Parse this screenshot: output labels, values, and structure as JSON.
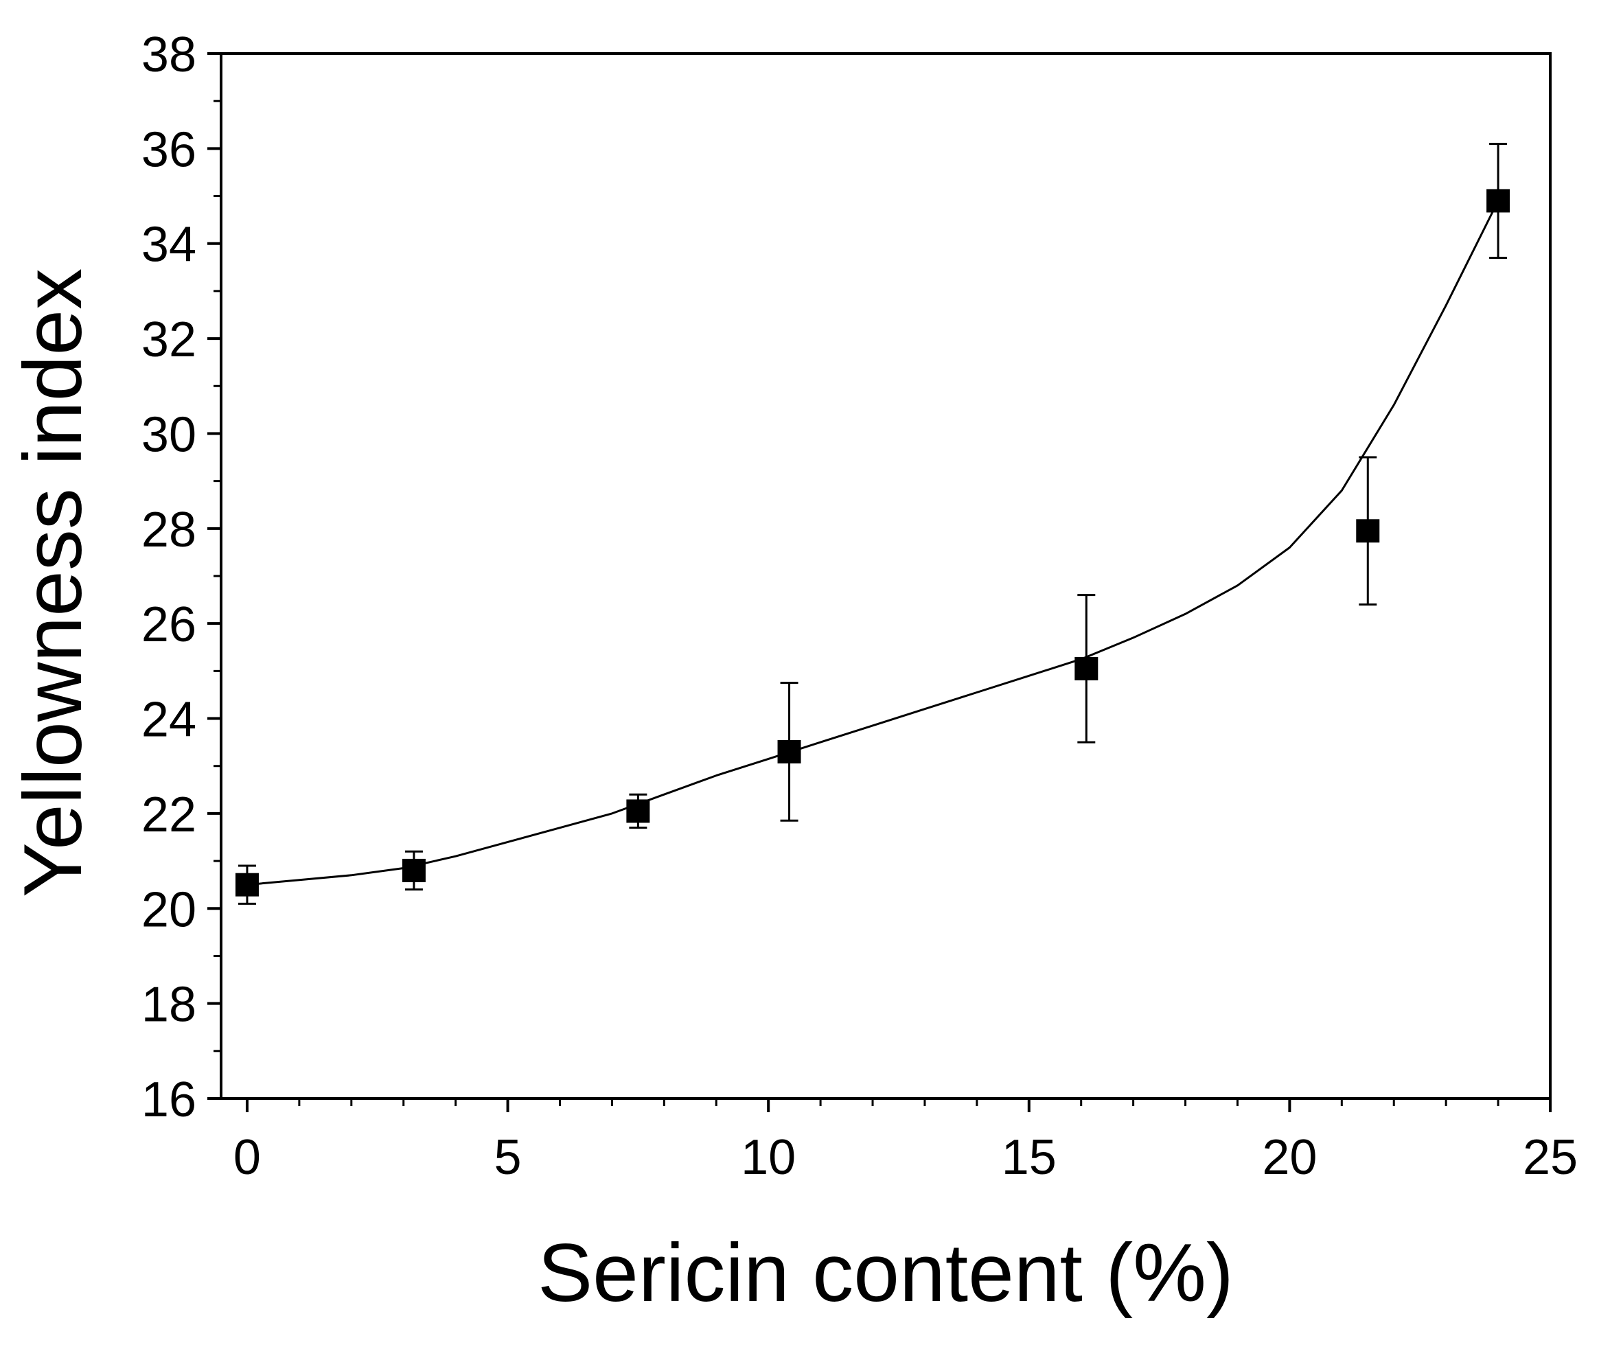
{
  "chart_data": {
    "type": "scatter",
    "xlabel": "Sericin content (%)",
    "ylabel": "Yellowness index",
    "xlim": [
      -0.5,
      25
    ],
    "ylim": [
      16,
      38
    ],
    "xticks": [
      0,
      5,
      10,
      15,
      20,
      25
    ],
    "yticks": [
      16,
      18,
      20,
      22,
      24,
      26,
      28,
      30,
      32,
      34,
      36,
      38
    ],
    "x_minor_step": 1,
    "y_minor_step": 1,
    "grid": false,
    "legend": "none",
    "colors": {
      "marker": "#000000",
      "line": "#000000",
      "axes": "#000000"
    },
    "series": [
      {
        "marker": "square",
        "x": [
          0,
          3.2,
          7.5,
          10.4,
          16.1,
          21.5,
          24
        ],
        "y": [
          20.5,
          20.8,
          22.05,
          23.3,
          25.05,
          27.95,
          34.9
        ],
        "error": [
          0.4,
          0.4,
          0.35,
          1.45,
          1.55,
          1.55,
          1.2
        ]
      }
    ],
    "fit_curve": {
      "x": [
        0,
        1,
        2,
        3,
        4,
        5,
        6,
        7,
        8,
        9,
        10,
        11,
        12,
        13,
        14,
        15,
        16,
        17,
        18,
        19,
        20,
        21,
        22,
        23,
        24
      ],
      "y": [
        20.5,
        20.6,
        20.7,
        20.85,
        21.1,
        21.4,
        21.7,
        22.0,
        22.4,
        22.8,
        23.15,
        23.5,
        23.85,
        24.2,
        24.55,
        24.9,
        25.25,
        25.7,
        26.2,
        26.8,
        27.6,
        28.8,
        30.6,
        32.7,
        34.9
      ]
    }
  }
}
